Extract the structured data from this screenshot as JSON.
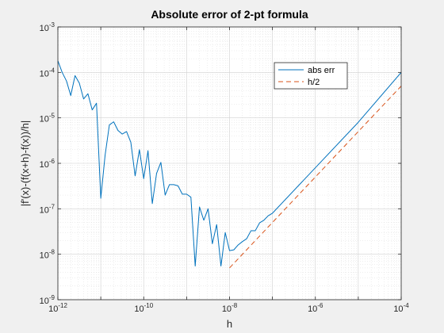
{
  "chart_data": {
    "type": "line",
    "title": "Absolute error of 2-pt formula",
    "xlabel": "h",
    "ylabel": "|f'(x)-(f(x+h)-f(x))/h|",
    "xscale": "log",
    "yscale": "log",
    "xlim": [
      1e-12,
      0.0001
    ],
    "ylim": [
      1e-09,
      0.001
    ],
    "grid": true,
    "minor_grid": true,
    "legend_location": "top-right",
    "x_ticks": [
      {
        "base": "10",
        "exp": "-12",
        "value": 1e-12
      },
      {
        "base": "10",
        "exp": "-10",
        "value": 1e-10
      },
      {
        "base": "10",
        "exp": "-8",
        "value": 1e-08
      },
      {
        "base": "10",
        "exp": "-6",
        "value": 1e-06
      },
      {
        "base": "10",
        "exp": "-4",
        "value": 0.0001
      }
    ],
    "y_ticks": [
      {
        "base": "10",
        "exp": "-9",
        "value": 1e-09
      },
      {
        "base": "10",
        "exp": "-8",
        "value": 1e-08
      },
      {
        "base": "10",
        "exp": "-7",
        "value": 1e-07
      },
      {
        "base": "10",
        "exp": "-6",
        "value": 1e-06
      },
      {
        "base": "10",
        "exp": "-5",
        "value": 1e-05
      },
      {
        "base": "10",
        "exp": "-4",
        "value": 0.0001
      },
      {
        "base": "10",
        "exp": "-3",
        "value": 0.001
      }
    ],
    "series": [
      {
        "name": "abs err",
        "color": "#0072bd",
        "style": "solid",
        "x": [
          1e-12,
          1.259e-12,
          1.585e-12,
          1.995e-12,
          2.512e-12,
          3.162e-12,
          3.981e-12,
          5.012e-12,
          6.31e-12,
          7.943e-12,
          1e-11,
          1.259e-11,
          1.585e-11,
          1.995e-11,
          2.512e-11,
          3.162e-11,
          3.981e-11,
          5.012e-11,
          6.31e-11,
          7.943e-11,
          1e-10,
          1.259e-10,
          1.585e-10,
          1.995e-10,
          2.512e-10,
          3.162e-10,
          3.981e-10,
          5.012e-10,
          6.31e-10,
          7.943e-10,
          1e-09,
          1.259e-09,
          1.585e-09,
          1.995e-09,
          2.512e-09,
          3.162e-09,
          3.981e-09,
          5.012e-09,
          6.31e-09,
          7.943e-09,
          1e-08,
          1.259e-08,
          1.585e-08,
          1.995e-08,
          2.512e-08,
          3.162e-08,
          3.981e-08,
          5.012e-08,
          6.31e-08,
          7.943e-08,
          1e-07,
          1e-06,
          1e-05,
          0.0001
        ],
        "y": [
          0.00018,
          0.0001,
          6.5e-05,
          3.1e-05,
          8.5e-05,
          5.8e-05,
          2.6e-05,
          3.4e-05,
          1.5e-05,
          2.1e-05,
          1.7e-07,
          1.5e-06,
          7e-06,
          8.2e-06,
          5.3e-06,
          4.4e-06,
          5e-06,
          2.9e-06,
          5.3e-07,
          2e-06,
          4.6e-07,
          1.9e-06,
          1.3e-07,
          6e-07,
          1.05e-06,
          2e-07,
          3.4e-07,
          3.4e-07,
          3.2e-07,
          2.1e-07,
          2.1e-07,
          1.8e-07,
          5.5e-09,
          1.1e-07,
          5.6e-08,
          1e-07,
          1.7e-08,
          4.5e-08,
          5.5e-09,
          3e-08,
          1.2e-08,
          1.25e-08,
          1.6e-08,
          1.9e-08,
          2.2e-08,
          3.3e-08,
          3.3e-08,
          4.9e-08,
          5.6e-08,
          7e-08,
          8e-08,
          8e-07,
          8e-06,
          0.0001
        ]
      },
      {
        "name": "h/2",
        "color": "#d95319",
        "style": "dashed",
        "x": [
          1e-08,
          0.0001
        ],
        "y": [
          5e-09,
          5e-05
        ]
      }
    ]
  }
}
